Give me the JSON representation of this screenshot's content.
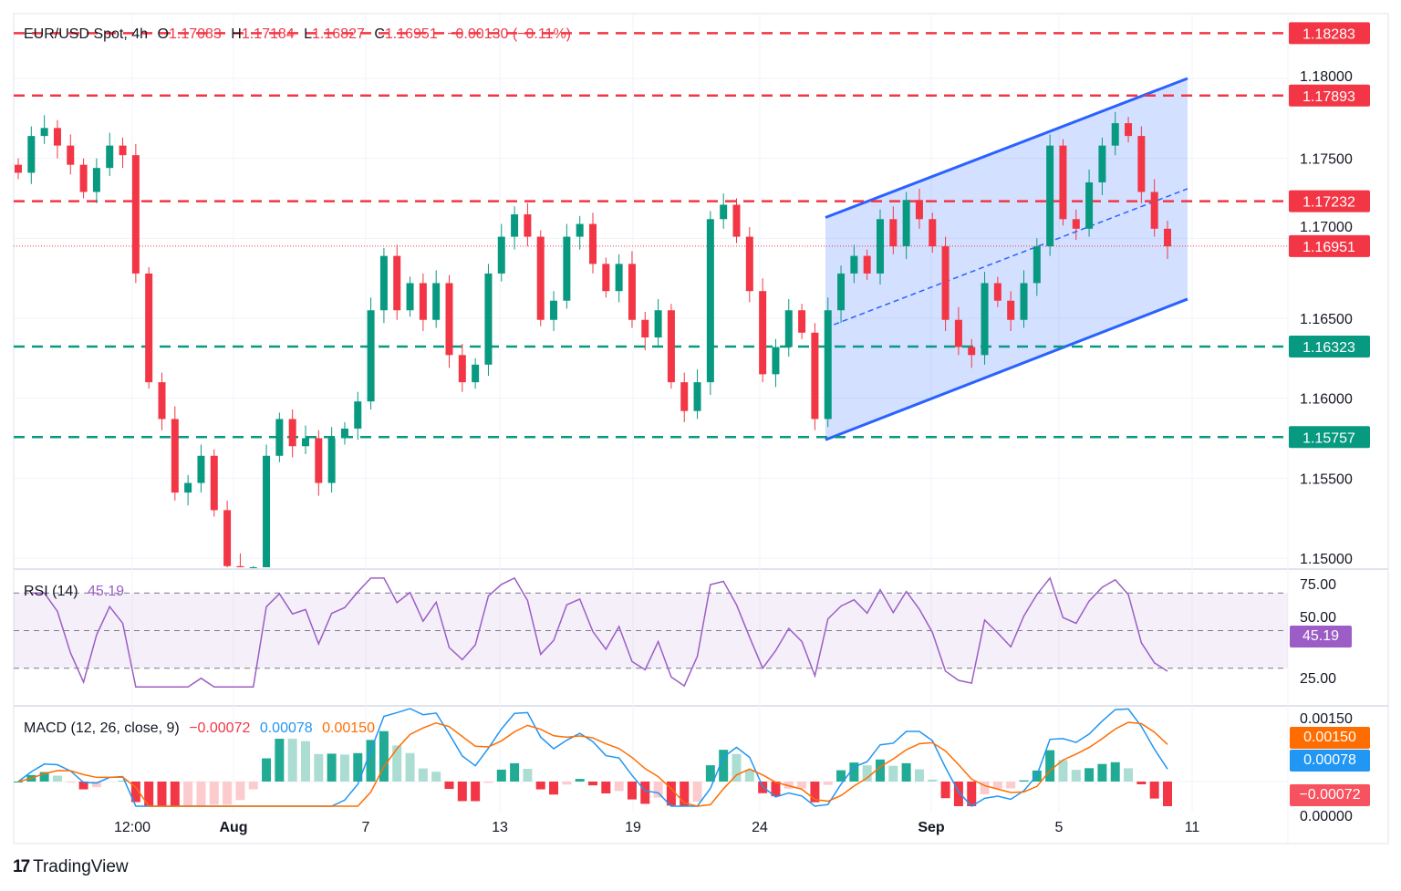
{
  "header": {
    "symbol": "EUR/USD Spot, 4h",
    "o_label": "O",
    "open": "1.17083",
    "h_label": "H",
    "high": "1.17184",
    "l_label": "L",
    "low": "1.16827",
    "c_label": "C",
    "close": "1.16951",
    "change": "−0.00130 (−0.11%)"
  },
  "branding": {
    "logo": "TradingView"
  },
  "colors": {
    "up": "#089981",
    "down": "#f23645",
    "resistance": "#f23645",
    "support": "#089981",
    "channel": "#2962ff",
    "rsi": "#9c5ec6",
    "macd": "#2196f3",
    "signal": "#ff6d00"
  },
  "chart_data": [
    {
      "type": "candlestick",
      "title": "EUR/USD Spot, 4h",
      "ylim": [
        1.1484,
        1.1845
      ],
      "y_ticks": [
        "1.15000",
        "1.15500",
        "1.16000",
        "1.16500",
        "1.17000",
        "1.17500",
        "1.18000"
      ],
      "x_ticks": [
        "12:00",
        "Aug",
        "7",
        "13",
        "19",
        "24",
        "Sep",
        "5",
        "11"
      ],
      "closes": [
        1.1741,
        1.1764,
        1.1769,
        1.1758,
        1.1746,
        1.1729,
        1.1744,
        1.1758,
        1.1752,
        1.1678,
        1.161,
        1.1587,
        1.1541,
        1.1547,
        1.1564,
        1.153,
        1.1495,
        1.1484,
        1.149,
        1.1564,
        1.1587,
        1.157,
        1.1575,
        1.1547,
        1.1575,
        1.1581,
        1.1598,
        1.1655,
        1.1689,
        1.1655,
        1.1672,
        1.1649,
        1.1672,
        1.1627,
        1.161,
        1.1621,
        1.1678,
        1.1701,
        1.1715,
        1.1701,
        1.1649,
        1.1661,
        1.1701,
        1.1709,
        1.1684,
        1.1667,
        1.1684,
        1.1649,
        1.1638,
        1.1655,
        1.161,
        1.1592,
        1.161,
        1.1712,
        1.1721,
        1.1701,
        1.1667,
        1.1615,
        1.1632,
        1.1655,
        1.1641,
        1.1587,
        1.1655,
        1.1678,
        1.1689,
        1.1678,
        1.1712,
        1.1695,
        1.1724,
        1.1712,
        1.1695,
        1.1649,
        1.1632,
        1.1627,
        1.1672,
        1.1661,
        1.1649,
        1.1672,
        1.1695,
        1.1758,
        1.1712,
        1.1706,
        1.1735,
        1.1758,
        1.1772,
        1.1764,
        1.1729,
        1.1706,
        1.1695
      ],
      "levels": [
        {
          "price": 1.18283,
          "label": "1.18283",
          "kind": "resistance"
        },
        {
          "price": 1.17893,
          "label": "1.17893",
          "kind": "resistance"
        },
        {
          "price": 1.17232,
          "label": "1.17232",
          "kind": "resistance"
        },
        {
          "price": 1.16951,
          "label": "1.16951",
          "kind": "last"
        },
        {
          "price": 1.16323,
          "label": "1.16323",
          "kind": "support"
        },
        {
          "price": 1.15757,
          "label": "1.15757",
          "kind": "support"
        }
      ],
      "channel": {
        "upper": [
          1.1713,
          1.18
        ],
        "middle": [
          1.1644,
          1.1731
        ],
        "lower": [
          1.1574,
          1.1662
        ]
      }
    },
    {
      "type": "line",
      "title": "RSI (14)",
      "value": "45.19",
      "ylim": [
        20,
        78
      ],
      "y_ticks": [
        "75.00",
        "50.00",
        "25.00"
      ],
      "bands": [
        70,
        50,
        30
      ]
    },
    {
      "type": "line+bar",
      "title": "MACD (12, 26, close, 9)",
      "histogram": "−0.00072",
      "macd": "0.00078",
      "signal": "0.00150",
      "y_ticks": [
        "0.00150",
        "0.00000"
      ]
    }
  ]
}
